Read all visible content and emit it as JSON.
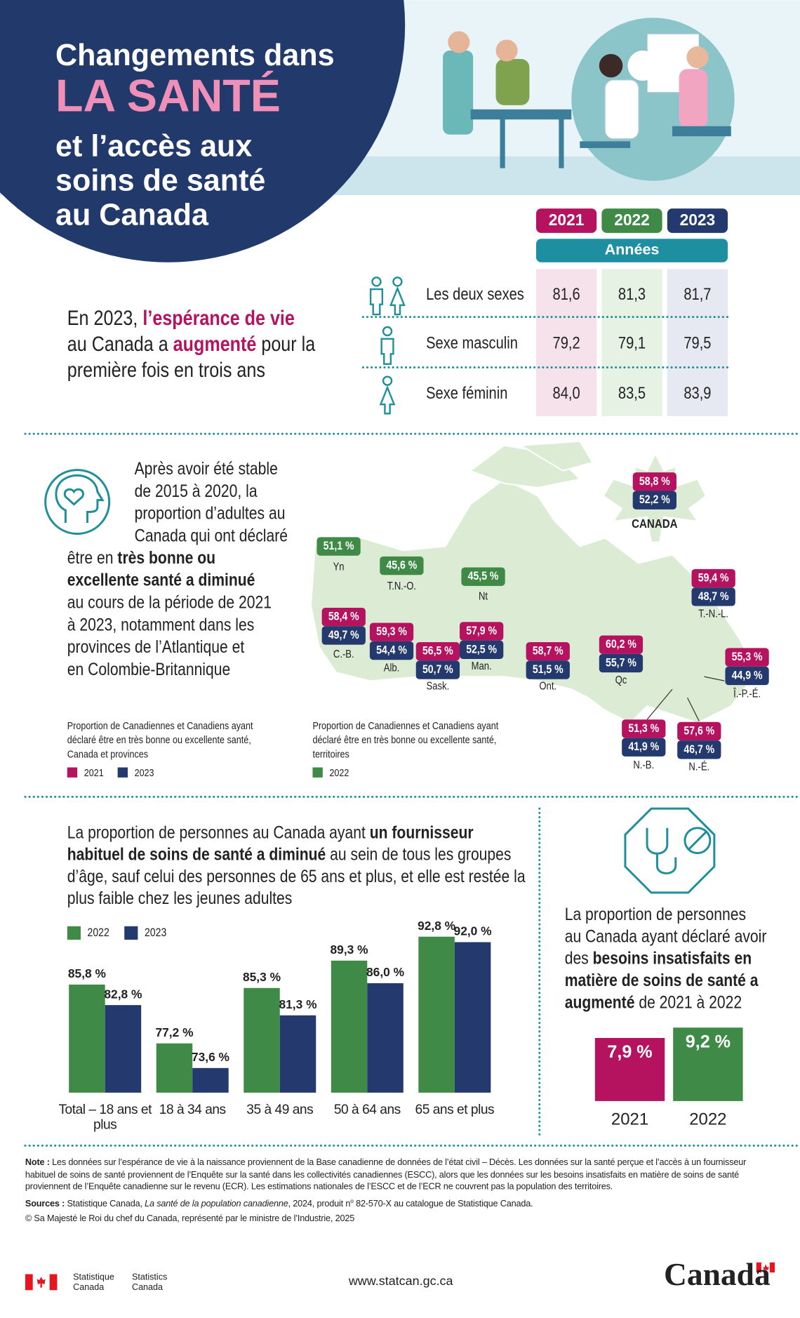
{
  "header": {
    "title": [
      "Changements dans",
      "LA SANTÉ",
      "et l’accès aux",
      "soins de santé",
      "au Canada"
    ]
  },
  "life_expectancy": {
    "statement": [
      [
        "En 2023, ",
        {
          "text": "l’espérance de vie",
          "style": "accent"
        }
      ],
      [
        "au Canada a ",
        {
          "text": "augmenté",
          "style": "accent"
        },
        " pour la"
      ],
      [
        "première fois en trois ans"
      ]
    ],
    "years": [
      {
        "label": "2021",
        "color": "#b5125f"
      },
      {
        "label": "2022",
        "color": "#3e8a46"
      },
      {
        "label": "2023",
        "color": "#24396d"
      }
    ],
    "years_title": "Années",
    "rows": [
      {
        "label": "Les deux sexes",
        "values": [
          "81,6",
          "81,3",
          "81,7"
        ]
      },
      {
        "label": "Sexe masculin",
        "values": [
          "79,2",
          "79,1",
          "79,5"
        ]
      },
      {
        "label": "Sexe féminin",
        "values": [
          "84,0",
          "83,5",
          "83,9"
        ]
      }
    ]
  },
  "self_rated_health": {
    "text": [
      "Après avoir été stable",
      "de 2015 à 2020, la",
      "proportion d’adultes au",
      "Canada qui ont déclaré",
      [
        "être en ",
        {
          "text": "très bonne ou",
          "style": "bold"
        }
      ],
      [
        {
          "text": "excellente santé a diminué",
          "style": "bold"
        }
      ],
      "au cours de la période de 2021",
      "à 2023, notamment dans les",
      "provinces de l’Atlantique et",
      "en Colombie-Britannique"
    ],
    "provinces": [
      {
        "name": "CANADA",
        "labels": [
          "58,8 %",
          "52,2 %"
        ]
      },
      {
        "name": "C.-B.",
        "labels": [
          "58,4 %",
          "49,7 %"
        ]
      },
      {
        "name": "Alb.",
        "labels": [
          "59,3 %",
          "54,4 %"
        ]
      },
      {
        "name": "Sask.",
        "labels": [
          "56,5 %",
          "50,7 %"
        ]
      },
      {
        "name": "Man.",
        "labels": [
          "57,9 %",
          "52,5 %"
        ]
      },
      {
        "name": "Ont.",
        "labels": [
          "58,7 %",
          "51,5 %"
        ]
      },
      {
        "name": "Qc",
        "labels": [
          "60,2 %",
          "55,7 %"
        ]
      },
      {
        "name": "T.-N.-L.",
        "labels": [
          "59,4 %",
          "48,7 %"
        ]
      },
      {
        "name": "Î.-P.-É.",
        "labels": [
          "55,3 %",
          "44,9 %"
        ]
      },
      {
        "name": "N.-B.",
        "labels": [
          "51,3 %",
          "41,9 %"
        ]
      },
      {
        "name": "N.-É.",
        "labels": [
          "57,6 %",
          "46,7 %"
        ]
      }
    ],
    "territories": [
      {
        "name": "Yn",
        "labels": [
          "51,1 %"
        ]
      },
      {
        "name": "T.N.-O.",
        "labels": [
          "45,6 %"
        ]
      },
      {
        "name": "Nt",
        "labels": [
          "45,5 %"
        ]
      }
    ],
    "legend_provinces": {
      "title": [
        "Proportion de Canadiennes et Canadiens ayant",
        "déclaré être en très bonne ou excellente santé,",
        "Canada et provinces"
      ],
      "items": [
        {
          "name": "2021",
          "color": "#b5125f"
        },
        {
          "name": "2023",
          "color": "#24396d"
        }
      ]
    },
    "legend_territories": {
      "title": [
        "Proportion de Canadiennes et Canadiens ayant",
        "déclaré être en très bonne ou excellente santé,",
        "territoires"
      ],
      "items": [
        {
          "name": "2022",
          "color": "#3e8a46"
        }
      ]
    }
  },
  "provider": {
    "text": [
      [
        "La proportion de personnes au Canada ayant ",
        {
          "text": "un fournisseur",
          "style": "bold"
        }
      ],
      [
        {
          "text": "habituel de soins de santé a diminué",
          "style": "bold"
        },
        " au sein de tous les groupes"
      ],
      "d’âge, sauf celui des personnes de 65 ans et plus, et elle est restée la",
      "plus faible chez les jeunes adultes"
    ],
    "chart": {
      "type": "bar",
      "categories": [
        "Total – 18 ans et plus",
        "18 à 34 ans",
        "35 à 49 ans",
        "50 à 64 ans",
        "65 ans et plus"
      ],
      "series": [
        {
          "name": "2022",
          "color": "#3e8a46",
          "values": [
            85.8,
            77.2,
            85.3,
            89.3,
            92.8
          ],
          "value_labels": [
            "85,8 %",
            "77,2 %",
            "85,3 %",
            "89,3 %",
            "92,8 %"
          ]
        },
        {
          "name": "2023",
          "color": "#24396d",
          "values": [
            82.8,
            73.6,
            81.3,
            86.0,
            92.0
          ],
          "value_labels": [
            "82,8 %",
            "73,6 %",
            "81,3 %",
            "86,0 %",
            "92,0 %"
          ]
        }
      ],
      "ylim": [
        70,
        95
      ]
    }
  },
  "unmet_needs": {
    "text": [
      "La proportion de personnes",
      "au Canada ayant déclaré avoir",
      [
        "des ",
        {
          "text": "besoins insatisfaits en",
          "style": "bold"
        }
      ],
      [
        {
          "text": "matière de soins de santé a",
          "style": "bold"
        }
      ],
      [
        {
          "text": "augmenté",
          "style": "bold"
        },
        " de 2021 à 2022"
      ]
    ],
    "chart": {
      "type": "bar",
      "categories": [
        "2021",
        "2022"
      ],
      "values": [
        7.9,
        9.2
      ],
      "value_labels": [
        "7,9 %",
        "9,2 %"
      ],
      "colors": [
        "#b5125f",
        "#3e8a46"
      ],
      "ylim": [
        0,
        10
      ]
    }
  },
  "footer": {
    "note": [
      {
        "text": "Note :",
        "style": "bold"
      },
      " Les données sur l’espérance de vie à la naissance proviennent de la Base canadienne de données de l’état civil – Décès. Les données sur la santé perçue et l’accès à un fournisseur habituel de soins de santé proviennent de l’Enquête sur la santé dans les collectivités canadiennes (ESCC), alors que les données sur les besoins insatisfaits en matière de soins de santé proviennent de l’Enquête canadienne sur le revenu (ECR). Les estimations nationales de l’ESCC et de l’ECR ne couvrent pas la population des territoires."
    ],
    "sources": [
      {
        "text": "Sources :",
        "style": "bold"
      },
      " Statistique Canada, ",
      {
        "text": "La santé de la population canadienne",
        "style": "italic"
      },
      ", 2024, produit n",
      {
        "text": "o",
        "style": "sup"
      },
      " 82-570-X au catalogue de Statistique Canada."
    ],
    "copyright": "© Sa Majesté le Roi du chef du Canada, représenté par le ministre de l’Industrie, 2025",
    "agency_fr": [
      "Statistique",
      "Canada"
    ],
    "agency_en": [
      "Statistics",
      "Canada"
    ],
    "url": "www.statcan.gc.ca",
    "wordmark": "Canada"
  }
}
